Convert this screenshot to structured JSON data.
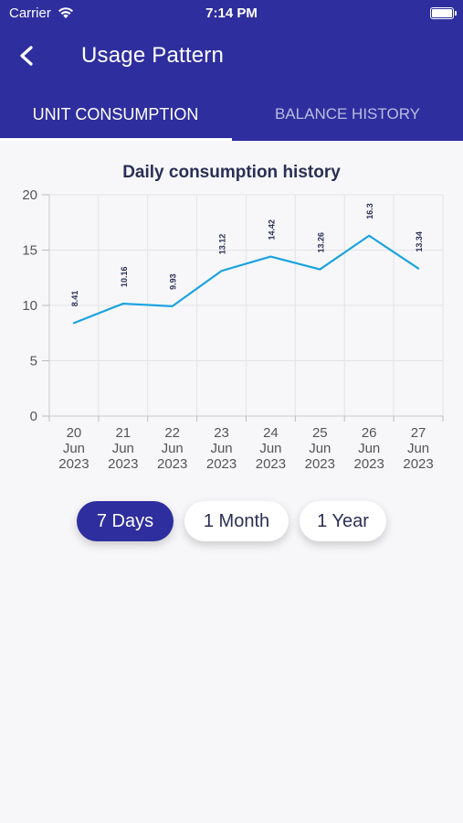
{
  "status_bar": {
    "carrier": "Carrier",
    "time": "7:14 PM"
  },
  "header": {
    "title": "Usage Pattern"
  },
  "tabs": [
    {
      "label": "UNIT CONSUMPTION",
      "active": true
    },
    {
      "label": "BALANCE HISTORY",
      "active": false
    }
  ],
  "colors": {
    "primary": "#2e2e9e",
    "line": "#1aa3df",
    "text": "#2a2f55"
  },
  "chart_data": {
    "type": "line",
    "title": "Daily consumption history",
    "categories": [
      [
        "20",
        "Jun",
        "2023"
      ],
      [
        "21",
        "Jun",
        "2023"
      ],
      [
        "22",
        "Jun",
        "2023"
      ],
      [
        "23",
        "Jun",
        "2023"
      ],
      [
        "24",
        "Jun",
        "2023"
      ],
      [
        "25",
        "Jun",
        "2023"
      ],
      [
        "26",
        "Jun",
        "2023"
      ],
      [
        "27",
        "Jun",
        "2023"
      ]
    ],
    "values": [
      8.41,
      10.16,
      9.93,
      13.12,
      14.42,
      13.26,
      16.3,
      13.34
    ],
    "value_labels": [
      "8.41",
      "10.16",
      "9.93",
      "13.12",
      "14.42",
      "13.26",
      "16.3",
      "13.34"
    ],
    "ylim": [
      0,
      20
    ],
    "yticks": [
      0,
      5,
      10,
      15,
      20
    ],
    "grid": true,
    "legend": "none"
  },
  "period_buttons": [
    {
      "label": "7 Days",
      "selected": true
    },
    {
      "label": "1 Month",
      "selected": false
    },
    {
      "label": "1 Year",
      "selected": false
    }
  ]
}
